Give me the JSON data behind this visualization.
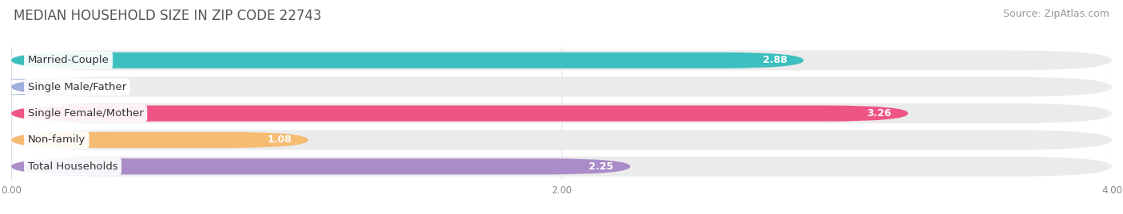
{
  "title": "MEDIAN HOUSEHOLD SIZE IN ZIP CODE 22743",
  "source": "Source: ZipAtlas.com",
  "categories": [
    "Married-Couple",
    "Single Male/Father",
    "Single Female/Mother",
    "Non-family",
    "Total Households"
  ],
  "values": [
    2.88,
    0.0,
    3.26,
    1.08,
    2.25
  ],
  "bar_colors": [
    "#3DBFBF",
    "#A0AEDE",
    "#EE5585",
    "#F5BC72",
    "#A98CC8"
  ],
  "bar_bg_color": "#EBEBEB",
  "xlim": [
    0,
    4.0
  ],
  "xticks": [
    0.0,
    2.0,
    4.0
  ],
  "xtick_labels": [
    "0.00",
    "2.00",
    "4.00"
  ],
  "title_fontsize": 12,
  "source_fontsize": 9,
  "label_fontsize": 9.5,
  "value_fontsize": 9,
  "background_color": "#FFFFFF",
  "value_label_color_inside": "#FFFFFF",
  "value_label_color_outside": "#666666"
}
